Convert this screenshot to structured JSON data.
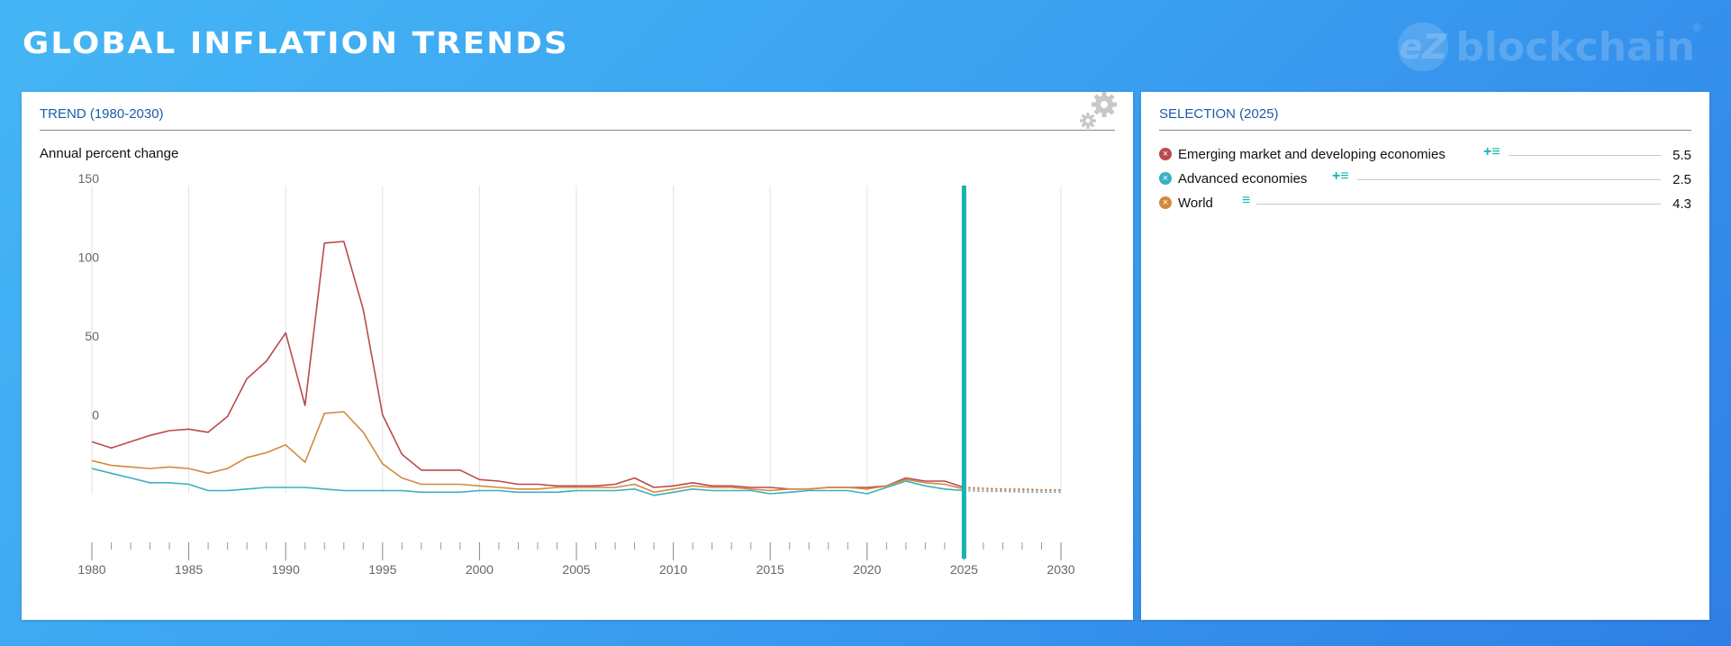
{
  "page": {
    "title": "GLOBAL INFLATION TRENDS"
  },
  "logo": {
    "mark": "eZ",
    "text": "blockchain",
    "reg": "®"
  },
  "trend_panel": {
    "header": "TREND (1980-2030)"
  },
  "selection_panel": {
    "header": "SELECTION (2025)",
    "items": [
      {
        "name": "Emerging market and developing economies",
        "value": "5.5",
        "color": "#b94a4c",
        "tools": "+≡"
      },
      {
        "name": "Advanced economies",
        "value": "2.5",
        "color": "#3aafc2",
        "tools": "+≡"
      },
      {
        "name": "World",
        "value": "4.3",
        "color": "#d28a3c",
        "tools": "≡"
      }
    ]
  },
  "chart_data": {
    "type": "line",
    "title": "",
    "ylabel": "Annual percent change",
    "xlabel": "",
    "xlim": [
      1980,
      2030
    ],
    "ylim": [
      -50,
      150
    ],
    "yticks": [
      150,
      100,
      50,
      0
    ],
    "xticks": [
      1980,
      1985,
      1990,
      1995,
      2000,
      2005,
      2010,
      2015,
      2020,
      2025,
      2030
    ],
    "selected_year": 2025,
    "selected_line_color": "#17b3b0",
    "grid": true,
    "series": [
      {
        "name": "Emerging market and developing economies",
        "color": "#b94a4c",
        "x": [
          1980,
          1981,
          1982,
          1983,
          1984,
          1985,
          1986,
          1987,
          1988,
          1989,
          1990,
          1991,
          1992,
          1993,
          1994,
          1995,
          1996,
          1997,
          1998,
          1999,
          2000,
          2001,
          2002,
          2003,
          2004,
          2005,
          2006,
          2007,
          2008,
          2009,
          2010,
          2011,
          2012,
          2013,
          2014,
          2015,
          2016,
          2017,
          2018,
          2019,
          2020,
          2021,
          2022,
          2023,
          2024,
          2025
        ],
        "y": [
          -17,
          -21,
          -17,
          -13,
          -10,
          -9,
          -11,
          -1,
          23,
          34,
          52,
          6,
          109,
          110,
          67,
          0,
          -25,
          -35,
          -35,
          -35,
          -41,
          -42,
          -44,
          -44,
          -45,
          -45,
          -45,
          -44,
          -40,
          -46,
          -45,
          -43,
          -45,
          -45,
          -46,
          -46,
          -47,
          -47,
          -46,
          -46,
          -46,
          -45,
          -40,
          -42,
          -42,
          -46
        ],
        "projection_x": [
          2025,
          2026,
          2027,
          2028,
          2029,
          2030
        ],
        "projection_y": [
          -46,
          -46.5,
          -47,
          -47,
          -47.5,
          -47.5
        ]
      },
      {
        "name": "Advanced economies",
        "color": "#3aafc2",
        "x": [
          1980,
          1981,
          1982,
          1983,
          1984,
          1985,
          1986,
          1987,
          1988,
          1989,
          1990,
          1991,
          1992,
          1993,
          1994,
          1995,
          1996,
          1997,
          1998,
          1999,
          2000,
          2001,
          2002,
          2003,
          2004,
          2005,
          2006,
          2007,
          2008,
          2009,
          2010,
          2011,
          2012,
          2013,
          2014,
          2015,
          2016,
          2017,
          2018,
          2019,
          2020,
          2021,
          2022,
          2023,
          2024,
          2025
        ],
        "y": [
          -34,
          -37,
          -40,
          -43,
          -43,
          -44,
          -48,
          -48,
          -47,
          -46,
          -46,
          -46,
          -47,
          -48,
          -48,
          -48,
          -48,
          -49,
          -49,
          -49,
          -48,
          -48,
          -49,
          -49,
          -49,
          -48,
          -48,
          -48,
          -47,
          -51,
          -49,
          -47,
          -48,
          -48,
          -48,
          -50,
          -49,
          -48,
          -48,
          -48,
          -50,
          -46,
          -42,
          -45,
          -47,
          -48
        ],
        "projection_x": [
          2025,
          2026,
          2027,
          2028,
          2029,
          2030
        ],
        "projection_y": [
          -48,
          -48.5,
          -48.5,
          -49,
          -49,
          -49
        ]
      },
      {
        "name": "World",
        "color": "#d28a3c",
        "x": [
          1980,
          1981,
          1982,
          1983,
          1984,
          1985,
          1986,
          1987,
          1988,
          1989,
          1990,
          1991,
          1992,
          1993,
          1994,
          1995,
          1996,
          1997,
          1998,
          1999,
          2000,
          2001,
          2002,
          2003,
          2004,
          2005,
          2006,
          2007,
          2008,
          2009,
          2010,
          2011,
          2012,
          2013,
          2014,
          2015,
          2016,
          2017,
          2018,
          2019,
          2020,
          2021,
          2022,
          2023,
          2024,
          2025
        ],
        "y": [
          -29,
          -32,
          -33,
          -34,
          -33,
          -34,
          -37,
          -34,
          -27,
          -24,
          -19,
          -30,
          1,
          2,
          -11,
          -31,
          -40,
          -44,
          -44,
          -44,
          -45,
          -46,
          -47,
          -47,
          -46,
          -46,
          -46,
          -46,
          -44,
          -49,
          -47,
          -45,
          -46,
          -46,
          -47,
          -48,
          -47,
          -47,
          -46,
          -46,
          -47,
          -45,
          -41,
          -43,
          -44,
          -47
        ],
        "projection_x": [
          2025,
          2026,
          2027,
          2028,
          2029,
          2030
        ],
        "projection_y": [
          -47,
          -47.5,
          -48,
          -48,
          -48,
          -48
        ]
      }
    ]
  }
}
